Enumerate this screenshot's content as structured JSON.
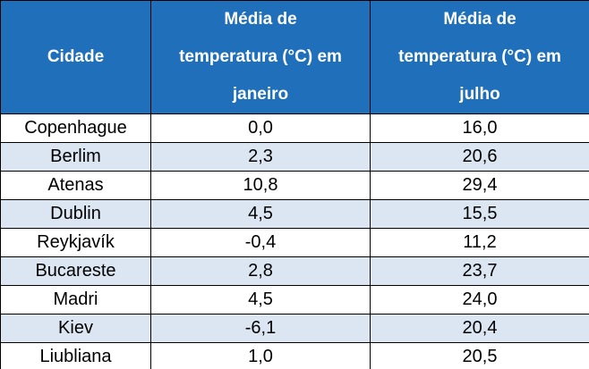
{
  "table": {
    "header": [
      [
        "Cidade"
      ],
      [
        "Média de",
        "temperatura (°C) em",
        "janeiro"
      ],
      [
        "Média de",
        "temperatura (°C) em",
        "julho"
      ]
    ],
    "rows": [
      [
        "Copenhague",
        "0,0",
        "16,0"
      ],
      [
        "Berlim",
        "2,3",
        "20,6"
      ],
      [
        "Atenas",
        "10,8",
        "29,4"
      ],
      [
        "Dublin",
        "4,5",
        "15,5"
      ],
      [
        "Reykjavík",
        "-0,4",
        "11,2"
      ],
      [
        "Bucareste",
        "2,8",
        "23,7"
      ],
      [
        "Madri",
        "4,5",
        "24,0"
      ],
      [
        "Kiev",
        "-6,1",
        "20,4"
      ],
      [
        "Liubliana",
        "1,0",
        "20,5"
      ]
    ]
  }
}
